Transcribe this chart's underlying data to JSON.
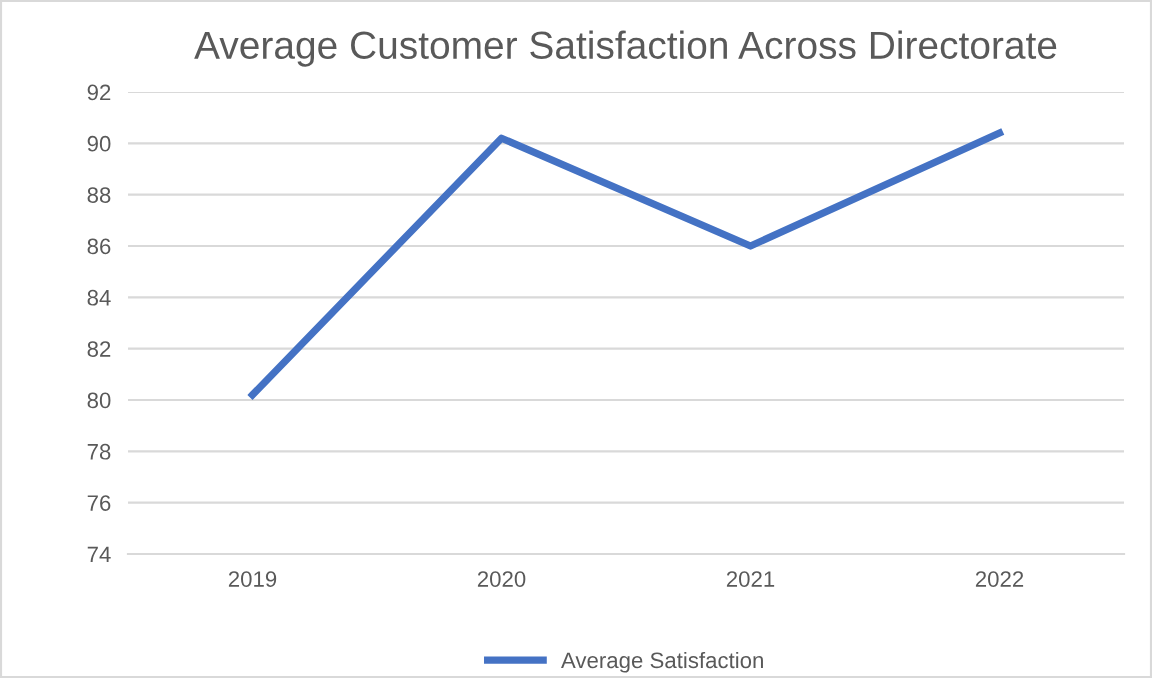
{
  "chart_data": {
    "type": "line",
    "title": "Average Customer Satisfaction Across Directorate",
    "categories": [
      "2019",
      "2020",
      "2021",
      "2022"
    ],
    "series": [
      {
        "name": "Average Satisfaction",
        "color": "#4472c4",
        "values": [
          80.2,
          90.2,
          86.0,
          90.4
        ]
      }
    ],
    "ylim": [
      74,
      92
    ],
    "yticks": [
      74,
      76,
      78,
      80,
      82,
      84,
      86,
      88,
      90,
      92
    ],
    "grid": "y",
    "legend": "bottom",
    "marker": "none",
    "line_style": "solid"
  }
}
